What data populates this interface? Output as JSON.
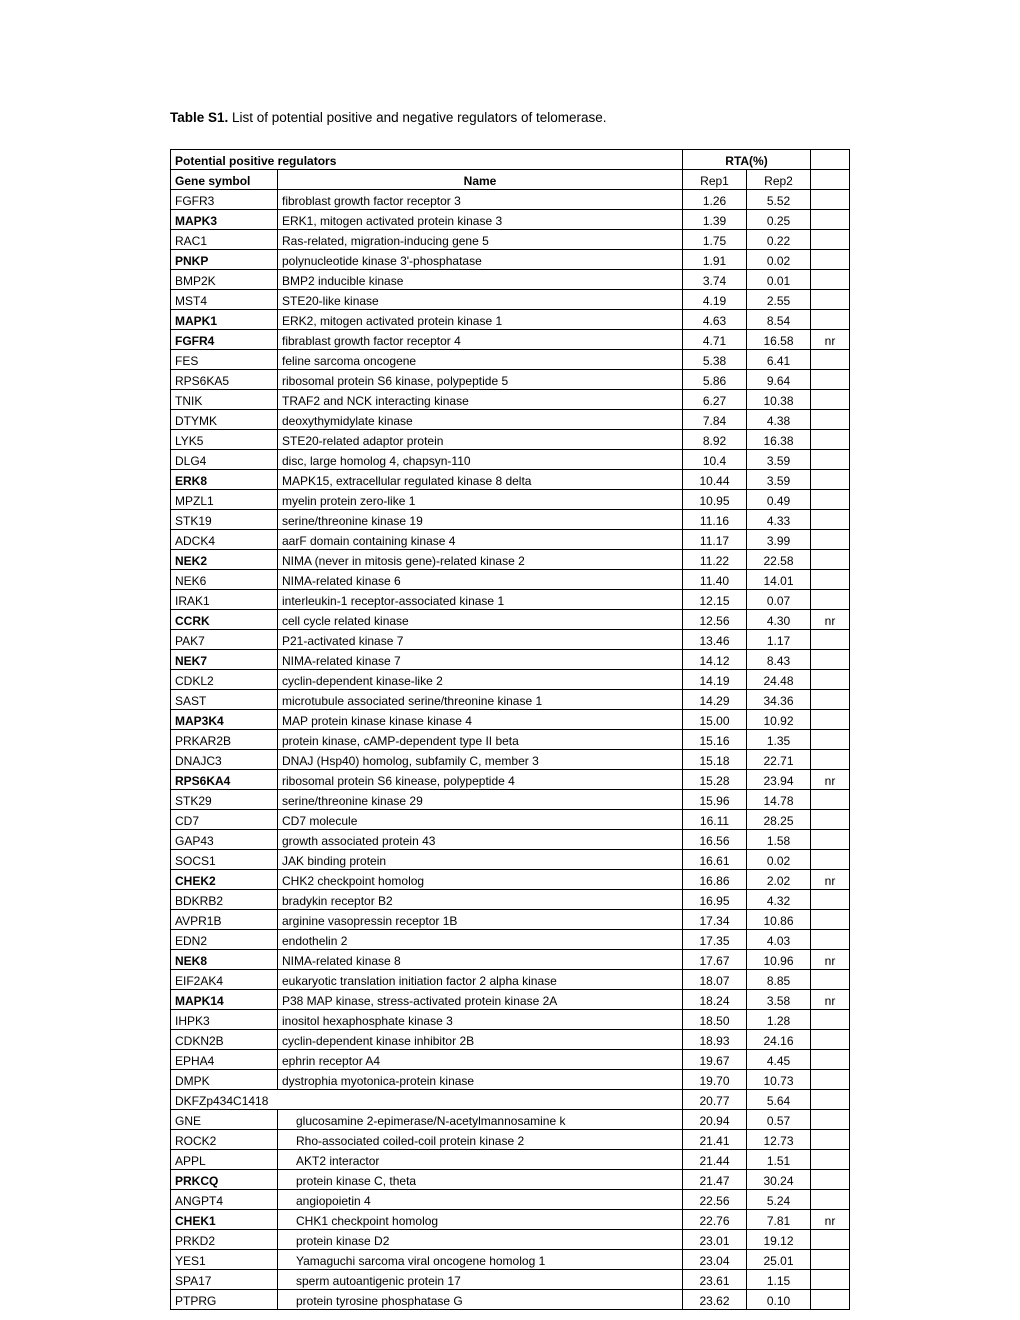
{
  "title_bold": "Table S1.",
  "title_rest": " List of potential positive and negative regulators of telomerase.",
  "header": {
    "section": "Potential positive regulators",
    "rta": "RTA(%)",
    "gene": "Gene symbol",
    "name": "Name",
    "rep1": "Rep1",
    "rep2": "Rep2"
  },
  "rows": [
    {
      "gene": "FGFR3",
      "name": "fibroblast growth factor receptor 3",
      "r1": "1.26",
      "r2": "5.52",
      "note": "",
      "bold": false
    },
    {
      "gene": "MAPK3",
      "name": "ERK1, mitogen activated protein kinase 3",
      "r1": "1.39",
      "r2": "0.25",
      "note": "",
      "bold": true
    },
    {
      "gene": "RAC1",
      "name": "Ras-related, migration-inducing gene 5",
      "r1": "1.75",
      "r2": "0.22",
      "note": "",
      "bold": false
    },
    {
      "gene": "PNKP",
      "name": "polynucleotide kinase 3'-phosphatase",
      "r1": "1.91",
      "r2": "0.02",
      "note": "",
      "bold": true
    },
    {
      "gene": "BMP2K",
      "name": "BMP2 inducible kinase",
      "r1": "3.74",
      "r2": "0.01",
      "note": "",
      "bold": false
    },
    {
      "gene": "MST4",
      "name": "STE20-like kinase",
      "r1": "4.19",
      "r2": "2.55",
      "note": "",
      "bold": false
    },
    {
      "gene": "MAPK1",
      "name": "ERK2, mitogen activated protein kinase 1",
      "r1": "4.63",
      "r2": "8.54",
      "note": "",
      "bold": true
    },
    {
      "gene": "FGFR4",
      "name": "fibrablast growth factor receptor 4",
      "r1": "4.71",
      "r2": "16.58",
      "note": "nr",
      "bold": true
    },
    {
      "gene": "FES",
      "name": "feline sarcoma oncogene",
      "r1": "5.38",
      "r2": "6.41",
      "note": "",
      "bold": false
    },
    {
      "gene": "RPS6KA5",
      "name": "ribosomal protein S6 kinase, polypeptide 5",
      "r1": "5.86",
      "r2": "9.64",
      "note": "",
      "bold": false
    },
    {
      "gene": "TNIK",
      "name": "TRAF2 and NCK interacting kinase",
      "r1": "6.27",
      "r2": "10.38",
      "note": "",
      "bold": false
    },
    {
      "gene": "DTYMK",
      "name": "deoxythymidylate kinase",
      "r1": "7.84",
      "r2": "4.38",
      "note": "",
      "bold": false
    },
    {
      "gene": "LYK5",
      "name": "STE20-related adaptor protein",
      "r1": "8.92",
      "r2": "16.38",
      "note": "",
      "bold": false
    },
    {
      "gene": "DLG4",
      "name": "disc, large homolog 4, chapsyn-110",
      "r1": "10.4",
      "r2": "3.59",
      "note": "",
      "bold": false
    },
    {
      "gene": "ERK8",
      "name": "MAPK15, extracellular regulated kinase 8 delta",
      "r1": "10.44",
      "r2": "3.59",
      "note": "",
      "bold": true
    },
    {
      "gene": "MPZL1",
      "name": "myelin protein zero-like 1",
      "r1": "10.95",
      "r2": "0.49",
      "note": "",
      "bold": false
    },
    {
      "gene": "STK19",
      "name": "serine/threonine kinase 19",
      "r1": "11.16",
      "r2": "4.33",
      "note": "",
      "bold": false
    },
    {
      "gene": "ADCK4",
      "name": "aarF domain containing kinase 4",
      "r1": "11.17",
      "r2": "3.99",
      "note": "",
      "bold": false
    },
    {
      "gene": "NEK2",
      "name": "NIMA (never in mitosis gene)-related kinase 2",
      "r1": "11.22",
      "r2": "22.58",
      "note": "",
      "bold": true
    },
    {
      "gene": "NEK6",
      "name": "NIMA-related kinase 6",
      "r1": "11.40",
      "r2": "14.01",
      "note": "",
      "bold": false
    },
    {
      "gene": "IRAK1",
      "name": "interleukin-1 receptor-associated kinase 1",
      "r1": "12.15",
      "r2": "0.07",
      "note": "",
      "bold": false
    },
    {
      "gene": "CCRK",
      "name": "cell cycle related kinase",
      "r1": "12.56",
      "r2": "4.30",
      "note": "nr",
      "bold": true
    },
    {
      "gene": "PAK7",
      "name": "P21-activated kinase 7",
      "r1": "13.46",
      "r2": "1.17",
      "note": "",
      "bold": false
    },
    {
      "gene": "NEK7",
      "name": "NIMA-related kinase 7",
      "r1": "14.12",
      "r2": "8.43",
      "note": "",
      "bold": true
    },
    {
      "gene": "CDKL2",
      "name": "cyclin-dependent kinase-like 2",
      "r1": "14.19",
      "r2": "24.48",
      "note": "",
      "bold": false
    },
    {
      "gene": "SAST",
      "name": "microtubule associated serine/threonine kinase 1",
      "r1": "14.29",
      "r2": "34.36",
      "note": "",
      "bold": false
    },
    {
      "gene": "MAP3K4",
      "name": "MAP protein kinase kinase kinase 4",
      "r1": "15.00",
      "r2": "10.92",
      "note": "",
      "bold": true
    },
    {
      "gene": "PRKAR2B",
      "name": "protein kinase, cAMP-dependent type II beta",
      "r1": "15.16",
      "r2": "1.35",
      "note": "",
      "bold": false
    },
    {
      "gene": "DNAJC3",
      "name": "DNAJ (Hsp40) homolog, subfamily C, member 3",
      "r1": "15.18",
      "r2": "22.71",
      "note": "",
      "bold": false
    },
    {
      "gene": "RPS6KA4",
      "name": "ribosomal protein S6 kinease, polypeptide 4",
      "r1": "15.28",
      "r2": "23.94",
      "note": "nr",
      "bold": true
    },
    {
      "gene": "STK29",
      "name": "serine/threonine kinase 29",
      "r1": "15.96",
      "r2": "14.78",
      "note": "",
      "bold": false
    },
    {
      "gene": "CD7",
      "name": "CD7 molecule",
      "r1": "16.11",
      "r2": "28.25",
      "note": "",
      "bold": false
    },
    {
      "gene": "GAP43",
      "name": "growth associated protein 43",
      "r1": "16.56",
      "r2": "1.58",
      "note": "",
      "bold": false
    },
    {
      "gene": "SOCS1",
      "name": "JAK binding protein",
      "r1": "16.61",
      "r2": "0.02",
      "note": "",
      "bold": false
    },
    {
      "gene": "CHEK2",
      "name": "CHK2 checkpoint homolog",
      "r1": "16.86",
      "r2": "2.02",
      "note": "nr",
      "bold": true
    },
    {
      "gene": "BDKRB2",
      "name": "bradykin receptor B2",
      "r1": "16.95",
      "r2": "4.32",
      "note": "",
      "bold": false
    },
    {
      "gene": "AVPR1B",
      "name": "arginine vasopressin receptor 1B",
      "r1": "17.34",
      "r2": "10.86",
      "note": "",
      "bold": false
    },
    {
      "gene": "EDN2",
      "name": "endothelin 2",
      "r1": "17.35",
      "r2": "4.03",
      "note": "",
      "bold": false
    },
    {
      "gene": "NEK8",
      "name": "NIMA-related kinase 8",
      "r1": "17.67",
      "r2": "10.96",
      "note": "nr",
      "bold": true
    },
    {
      "gene": "EIF2AK4",
      "name": "eukaryotic translation initiation factor 2 alpha kinase",
      "r1": "18.07",
      "r2": "8.85",
      "note": "",
      "bold": false
    },
    {
      "gene": "MAPK14",
      "name": "P38 MAP kinase, stress-activated protein kinase 2A",
      "r1": "18.24",
      "r2": "3.58",
      "note": "nr",
      "bold": true
    },
    {
      "gene": "IHPK3",
      "name": "inositol hexaphosphate kinase 3",
      "r1": "18.50",
      "r2": "1.28",
      "note": "",
      "bold": false
    },
    {
      "gene": "CDKN2B",
      "name": "cyclin-dependent kinase inhibitor 2B",
      "r1": "18.93",
      "r2": "24.16",
      "note": "",
      "bold": false
    },
    {
      "gene": "EPHA4",
      "name": "ephrin receptor A4",
      "r1": "19.67",
      "r2": "4.45",
      "note": "",
      "bold": false
    },
    {
      "gene": "DMPK",
      "name": "dystrophia myotonica-protein kinase",
      "r1": "19.70",
      "r2": "10.73",
      "note": "",
      "bold": false
    },
    {
      "gene": "DKFZp434C1418",
      "name": "",
      "r1": "20.77",
      "r2": "5.64",
      "note": "",
      "bold": false,
      "merge": true
    },
    {
      "gene": "GNE",
      "name": "glucosamine 2-epimerase/N-acetylmannosamine k",
      "r1": "20.94",
      "r2": "0.57",
      "note": "",
      "bold": false,
      "indent": true
    },
    {
      "gene": "ROCK2",
      "name": "Rho-associated coiled-coil protein kinase 2",
      "r1": "21.41",
      "r2": "12.73",
      "note": "",
      "bold": false,
      "indent": true
    },
    {
      "gene": "APPL",
      "name": "AKT2 interactor",
      "r1": "21.44",
      "r2": "1.51",
      "note": "",
      "bold": false,
      "indent": true
    },
    {
      "gene": "PRKCQ",
      "name": "protein kinase C, theta",
      "r1": "21.47",
      "r2": "30.24",
      "note": "",
      "bold": true,
      "indent": true
    },
    {
      "gene": "ANGPT4",
      "name": "angiopoietin 4",
      "r1": "22.56",
      "r2": "5.24",
      "note": "",
      "bold": false,
      "indent": true
    },
    {
      "gene": "CHEK1",
      "name": "CHK1 checkpoint homolog",
      "r1": "22.76",
      "r2": "7.81",
      "note": "nr",
      "bold": true,
      "indent": true
    },
    {
      "gene": "PRKD2",
      "name": "protein kinase D2",
      "r1": "23.01",
      "r2": "19.12",
      "note": "",
      "bold": false,
      "indent": true
    },
    {
      "gene": "YES1",
      "name": "Yamaguchi sarcoma viral oncogene homolog 1",
      "r1": "23.04",
      "r2": "25.01",
      "note": "",
      "bold": false,
      "indent": true
    },
    {
      "gene": "SPA17",
      "name": "sperm autoantigenic protein 17",
      "r1": "23.61",
      "r2": "1.15",
      "note": "",
      "bold": false,
      "indent": true
    },
    {
      "gene": "PTPRG",
      "name": "protein tyrosine phosphatase G",
      "r1": "23.62",
      "r2": "0.10",
      "note": "",
      "bold": false,
      "indent": true
    }
  ]
}
